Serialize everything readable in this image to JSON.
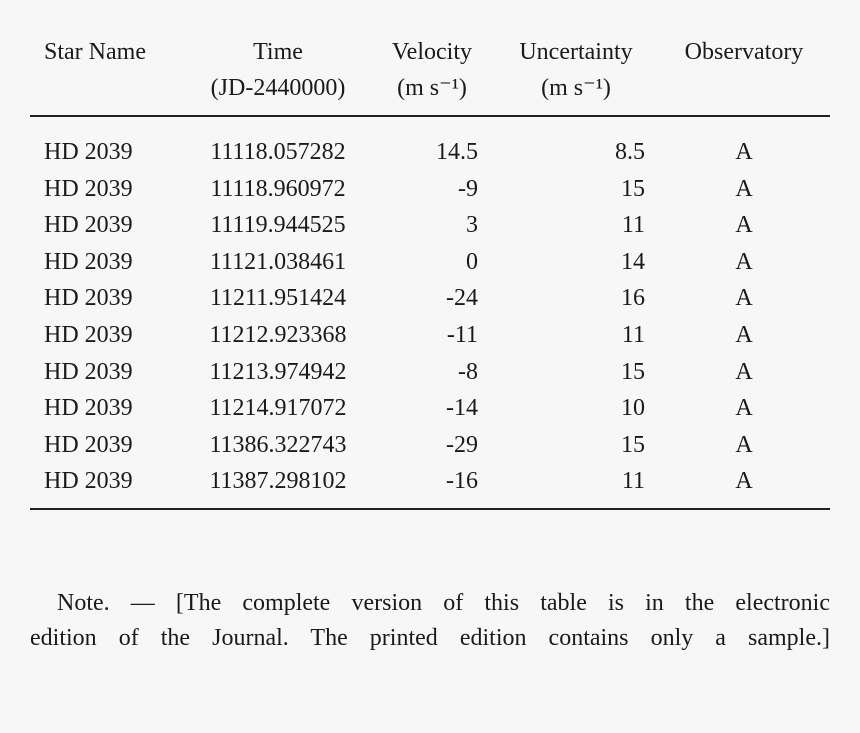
{
  "table": {
    "header": [
      [
        "Star Name",
        ""
      ],
      [
        "Time",
        "(JD-2440000)"
      ],
      [
        "Velocity",
        "(m s⁻¹)"
      ],
      [
        "Uncertainty",
        "(m s⁻¹)"
      ],
      [
        "Observatory",
        ""
      ]
    ],
    "rows": [
      [
        "HD 2039",
        "11118.057282",
        "14.5",
        "8.5",
        "A"
      ],
      [
        "HD 2039",
        "11118.960972",
        "-9",
        "15",
        "A"
      ],
      [
        "HD 2039",
        "11119.944525",
        "3",
        "11",
        "A"
      ],
      [
        "HD 2039",
        "11121.038461",
        "0",
        "14",
        "A"
      ],
      [
        "HD 2039",
        "11211.951424",
        "-24",
        "16",
        "A"
      ],
      [
        "HD 2039",
        "11212.923368",
        "-11",
        "11",
        "A"
      ],
      [
        "HD 2039",
        "11213.974942",
        "-8",
        "15",
        "A"
      ],
      [
        "HD 2039",
        "11214.917072",
        "-14",
        "10",
        "A"
      ],
      [
        "HD 2039",
        "11386.322743",
        "-29",
        "15",
        "A"
      ],
      [
        "HD 2039",
        "11387.298102",
        "-16",
        "11",
        "A"
      ]
    ]
  },
  "note": {
    "line1": "Note. — [The complete version of this table is in the electronic",
    "line2": "edition of the Journal. The printed edition contains only a sample.]"
  }
}
